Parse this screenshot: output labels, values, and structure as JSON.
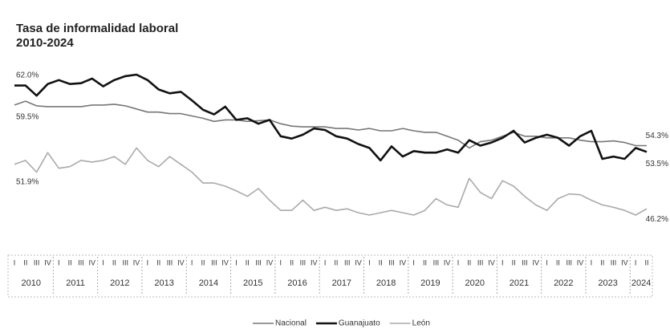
{
  "chart_data": {
    "type": "line",
    "title": "Tasa de informalidad laboral",
    "subtitle": "2010-2024",
    "categories": [
      "I",
      "II",
      "III",
      "IV",
      "I",
      "II",
      "III",
      "IV",
      "I",
      "II",
      "III",
      "IV",
      "I",
      "II",
      "III",
      "IV",
      "I",
      "II",
      "III",
      "IV",
      "I",
      "II",
      "III",
      "IV",
      "I",
      "II",
      "III",
      "IV",
      "I",
      "II",
      "III",
      "IV",
      "I",
      "II",
      "III",
      "IV",
      "I",
      "II",
      "III",
      "IV",
      "I",
      "II",
      "III",
      "IV",
      "I",
      "II",
      "III",
      "IV",
      "I",
      "II",
      "III",
      "IV",
      "I",
      "II",
      "III",
      "IV",
      "I",
      "II"
    ],
    "years": [
      "2010",
      "2011",
      "2012",
      "2013",
      "2014",
      "2015",
      "2016",
      "2017",
      "2018",
      "2019",
      "2020",
      "2021",
      "2022",
      "2023",
      "2024"
    ],
    "series": [
      {
        "name": "Nacional",
        "color": "#777777",
        "values": [
          59.5,
          60.0,
          59.4,
          59.3,
          59.3,
          59.3,
          59.3,
          59.5,
          59.5,
          59.6,
          59.4,
          59.0,
          58.6,
          58.6,
          58.4,
          58.4,
          58.1,
          57.8,
          57.4,
          57.6,
          57.6,
          57.4,
          57.5,
          57.6,
          57.1,
          56.8,
          56.7,
          56.7,
          56.7,
          56.5,
          56.5,
          56.3,
          56.5,
          56.2,
          56.2,
          56.5,
          56.2,
          56.0,
          56.0,
          55.5,
          55.0,
          54.0,
          54.8,
          55.0,
          55.5,
          56.0,
          55.5,
          55.5,
          55.3,
          55.3,
          55.3,
          55.0,
          54.8,
          54.8,
          54.9,
          54.7,
          54.3,
          54.3
        ],
        "value_labels": [
          "59.5%",
          null,
          null,
          null,
          null,
          null,
          null,
          null,
          null,
          null,
          null,
          null,
          null,
          null,
          null,
          null,
          null,
          null,
          null,
          null,
          null,
          null,
          null,
          null,
          null,
          null,
          null,
          null,
          null,
          null,
          null,
          null,
          null,
          null,
          null,
          null,
          null,
          null,
          null,
          null,
          null,
          null,
          null,
          null,
          null,
          null,
          null,
          null,
          null,
          null,
          null,
          null,
          null,
          null,
          null,
          null,
          null,
          "54.3%"
        ]
      },
      {
        "name": "Guanajuato",
        "color": "#111111",
        "values": [
          62.0,
          62.0,
          60.7,
          62.2,
          62.7,
          62.2,
          62.3,
          62.9,
          61.9,
          62.7,
          63.2,
          63.4,
          62.7,
          61.5,
          61.0,
          61.2,
          60.1,
          58.9,
          58.3,
          59.3,
          57.6,
          57.8,
          57.1,
          57.6,
          55.5,
          55.2,
          55.7,
          56.5,
          56.3,
          55.5,
          55.2,
          54.5,
          54.0,
          52.4,
          54.2,
          52.9,
          53.6,
          53.4,
          53.4,
          53.8,
          53.4,
          55.0,
          54.3,
          54.7,
          55.3,
          56.2,
          54.7,
          55.3,
          55.7,
          55.3,
          54.3,
          55.5,
          56.2,
          52.6,
          52.9,
          52.6,
          54.0,
          53.5
        ],
        "value_labels": [
          "62.0%",
          null,
          null,
          null,
          null,
          null,
          null,
          null,
          null,
          null,
          null,
          null,
          null,
          null,
          null,
          null,
          null,
          null,
          null,
          null,
          null,
          null,
          null,
          null,
          null,
          null,
          null,
          null,
          null,
          null,
          null,
          null,
          null,
          null,
          null,
          null,
          null,
          null,
          null,
          null,
          null,
          null,
          null,
          null,
          null,
          null,
          null,
          null,
          null,
          null,
          null,
          null,
          null,
          null,
          null,
          null,
          null,
          "53.5%"
        ]
      },
      {
        "name": "León",
        "color": "#aaaaaa",
        "values": [
          51.9,
          52.4,
          50.9,
          53.4,
          51.4,
          51.6,
          52.4,
          52.2,
          52.4,
          52.9,
          51.9,
          54.0,
          52.4,
          51.6,
          52.9,
          51.9,
          50.9,
          49.5,
          49.5,
          49.1,
          48.5,
          47.8,
          48.8,
          47.3,
          46.0,
          46.0,
          47.3,
          46.0,
          46.4,
          46.0,
          46.2,
          45.7,
          45.4,
          45.7,
          46.0,
          45.7,
          45.4,
          46.0,
          47.5,
          46.7,
          46.4,
          50.1,
          48.3,
          47.5,
          49.8,
          49.1,
          47.8,
          46.7,
          46.0,
          47.5,
          48.1,
          48.0,
          47.3,
          46.7,
          46.4,
          46.0,
          45.4,
          46.2
        ],
        "value_labels": [
          "51.9%",
          null,
          null,
          null,
          null,
          null,
          null,
          null,
          null,
          null,
          null,
          null,
          null,
          null,
          null,
          null,
          null,
          null,
          null,
          null,
          null,
          null,
          null,
          null,
          null,
          null,
          null,
          null,
          null,
          null,
          null,
          null,
          null,
          null,
          null,
          null,
          null,
          null,
          null,
          null,
          null,
          null,
          null,
          null,
          null,
          null,
          null,
          null,
          null,
          null,
          null,
          null,
          null,
          null,
          null,
          null,
          null,
          "46.2%"
        ]
      }
    ]
  }
}
